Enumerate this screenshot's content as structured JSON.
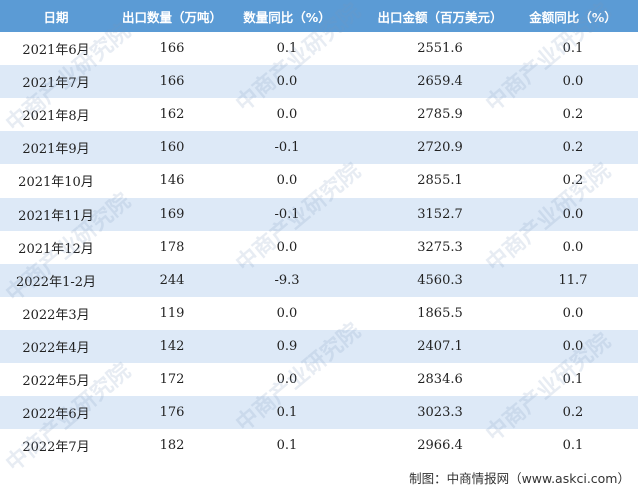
{
  "table": {
    "header": [
      "日期",
      "出口数量（万吨）",
      "数量同比（%）",
      "出口金额（百万美元）",
      "金额同比（%）"
    ],
    "rows": [
      [
        "2021年6月",
        "166",
        "0.1",
        "2551.6",
        "0.1"
      ],
      [
        "2021年7月",
        "166",
        "0.0",
        "2659.4",
        "0.0"
      ],
      [
        "2021年8月",
        "162",
        "0.0",
        "2785.9",
        "0.2"
      ],
      [
        "2021年9月",
        "160",
        "-0.1",
        "2720.9",
        "0.2"
      ],
      [
        "2021年10月",
        "146",
        "0.0",
        "2855.1",
        "0.2"
      ],
      [
        "2021年11月",
        "169",
        "-0.1",
        "3152.7",
        "0.0"
      ],
      [
        "2021年12月",
        "178",
        "0.0",
        "3275.3",
        "0.0"
      ],
      [
        "2022年1-2月",
        "244",
        "-9.3",
        "4560.3",
        "11.7"
      ],
      [
        "2022年3月",
        "119",
        "0.0",
        "1865.5",
        "0.0"
      ],
      [
        "2022年4月",
        "142",
        "0.9",
        "2407.1",
        "0.0"
      ],
      [
        "2022年5月",
        "172",
        "0.0",
        "2834.6",
        "0.1"
      ],
      [
        "2022年6月",
        "176",
        "0.1",
        "3023.3",
        "0.2"
      ],
      [
        "2022年7月",
        "182",
        "0.1",
        "2966.4",
        "0.1"
      ]
    ]
  },
  "footer": "制图：中商情报网（www.askci.com）",
  "watermark": "中商产业研究院"
}
